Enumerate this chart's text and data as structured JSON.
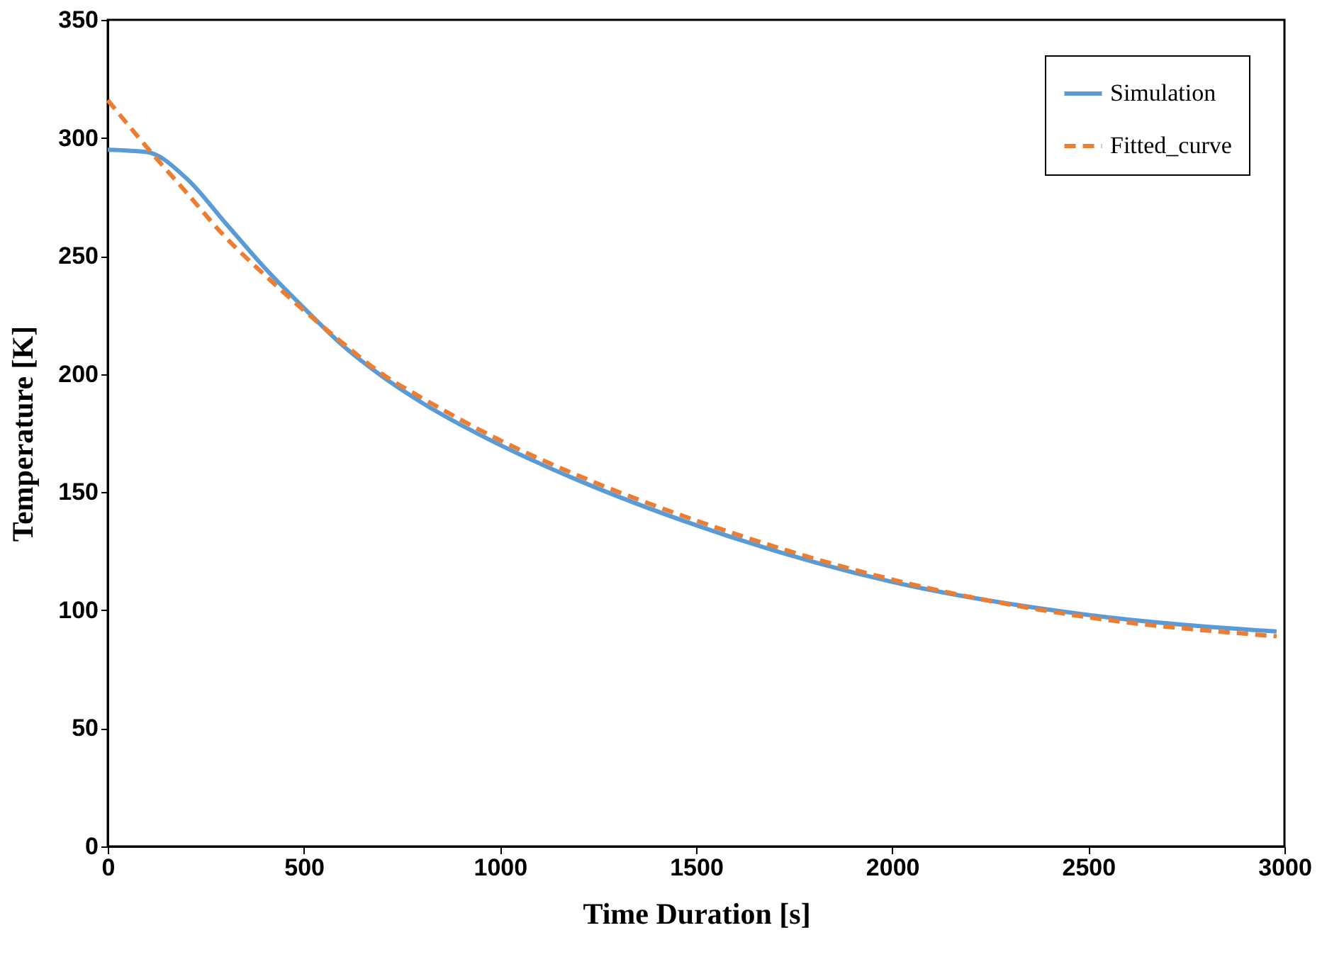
{
  "chart_data": {
    "type": "line",
    "xlabel": "Time Duration [s]",
    "ylabel": "Temperature [K]",
    "xlim": [
      0,
      3000
    ],
    "xticks": [
      0,
      500,
      1000,
      1500,
      2000,
      2500,
      3000
    ],
    "ylim": [
      0,
      350
    ],
    "yticks": [
      0,
      50,
      100,
      150,
      200,
      250,
      300,
      350
    ],
    "grid": false,
    "legend": "top right",
    "marker": "none",
    "series": [
      {
        "name": "Simulation",
        "color": "#5b9bd5",
        "line_style": "solid",
        "x": [
          0,
          100,
          200,
          300,
          400,
          500,
          600,
          700,
          800,
          1000,
          1200,
          1500,
          2000,
          2500,
          2980
        ],
        "values": [
          295,
          294,
          283,
          264,
          245,
          228,
          212,
          199,
          188,
          170,
          155,
          136,
          112,
          98,
          91
        ]
      },
      {
        "name": "Fitted_curve",
        "color": "#ed7d31",
        "line_style": "dashed",
        "x": [
          0,
          100,
          200,
          300,
          400,
          500,
          600,
          700,
          800,
          1000,
          1200,
          1500,
          2000,
          2500,
          2980
        ],
        "values": [
          316,
          296,
          277,
          258,
          242,
          227,
          213,
          200,
          190,
          172,
          157,
          138,
          113,
          97,
          89
        ]
      }
    ]
  }
}
